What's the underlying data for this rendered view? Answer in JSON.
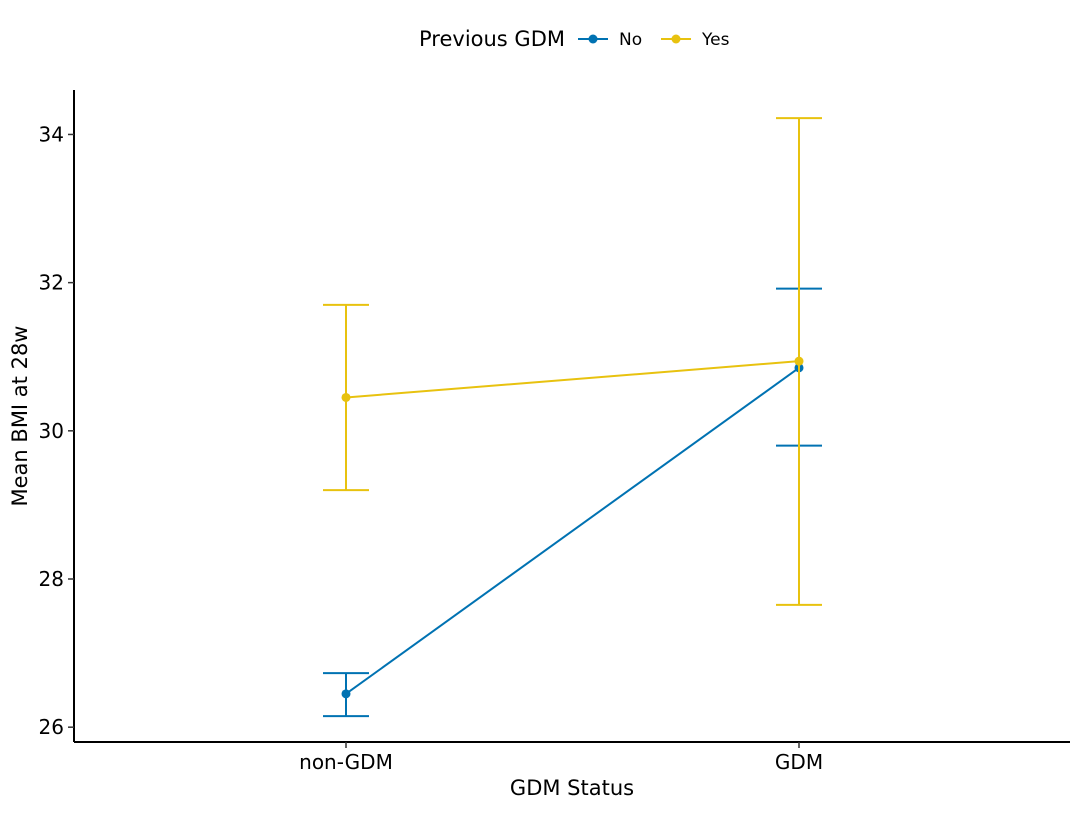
{
  "chart_data": {
    "type": "line",
    "title": "",
    "xlabel": "GDM Status",
    "ylabel": "Mean BMI at 28w",
    "categories": [
      "non-GDM",
      "GDM"
    ],
    "ylim": [
      25.8,
      34.6
    ],
    "yticks": [
      26,
      28,
      30,
      32,
      34
    ],
    "grid": false,
    "legend": {
      "title": "Previous GDM",
      "position": "top"
    },
    "series": [
      {
        "name": "No",
        "color": "#0072B2",
        "values": [
          26.45,
          30.85
        ],
        "error_low": [
          26.15,
          29.8
        ],
        "error_high": [
          26.73,
          31.92
        ]
      },
      {
        "name": "Yes",
        "color": "#E8C20F",
        "values": [
          30.45,
          30.94
        ],
        "error_low": [
          29.2,
          27.65
        ],
        "error_high": [
          31.7,
          34.22
        ]
      }
    ]
  }
}
